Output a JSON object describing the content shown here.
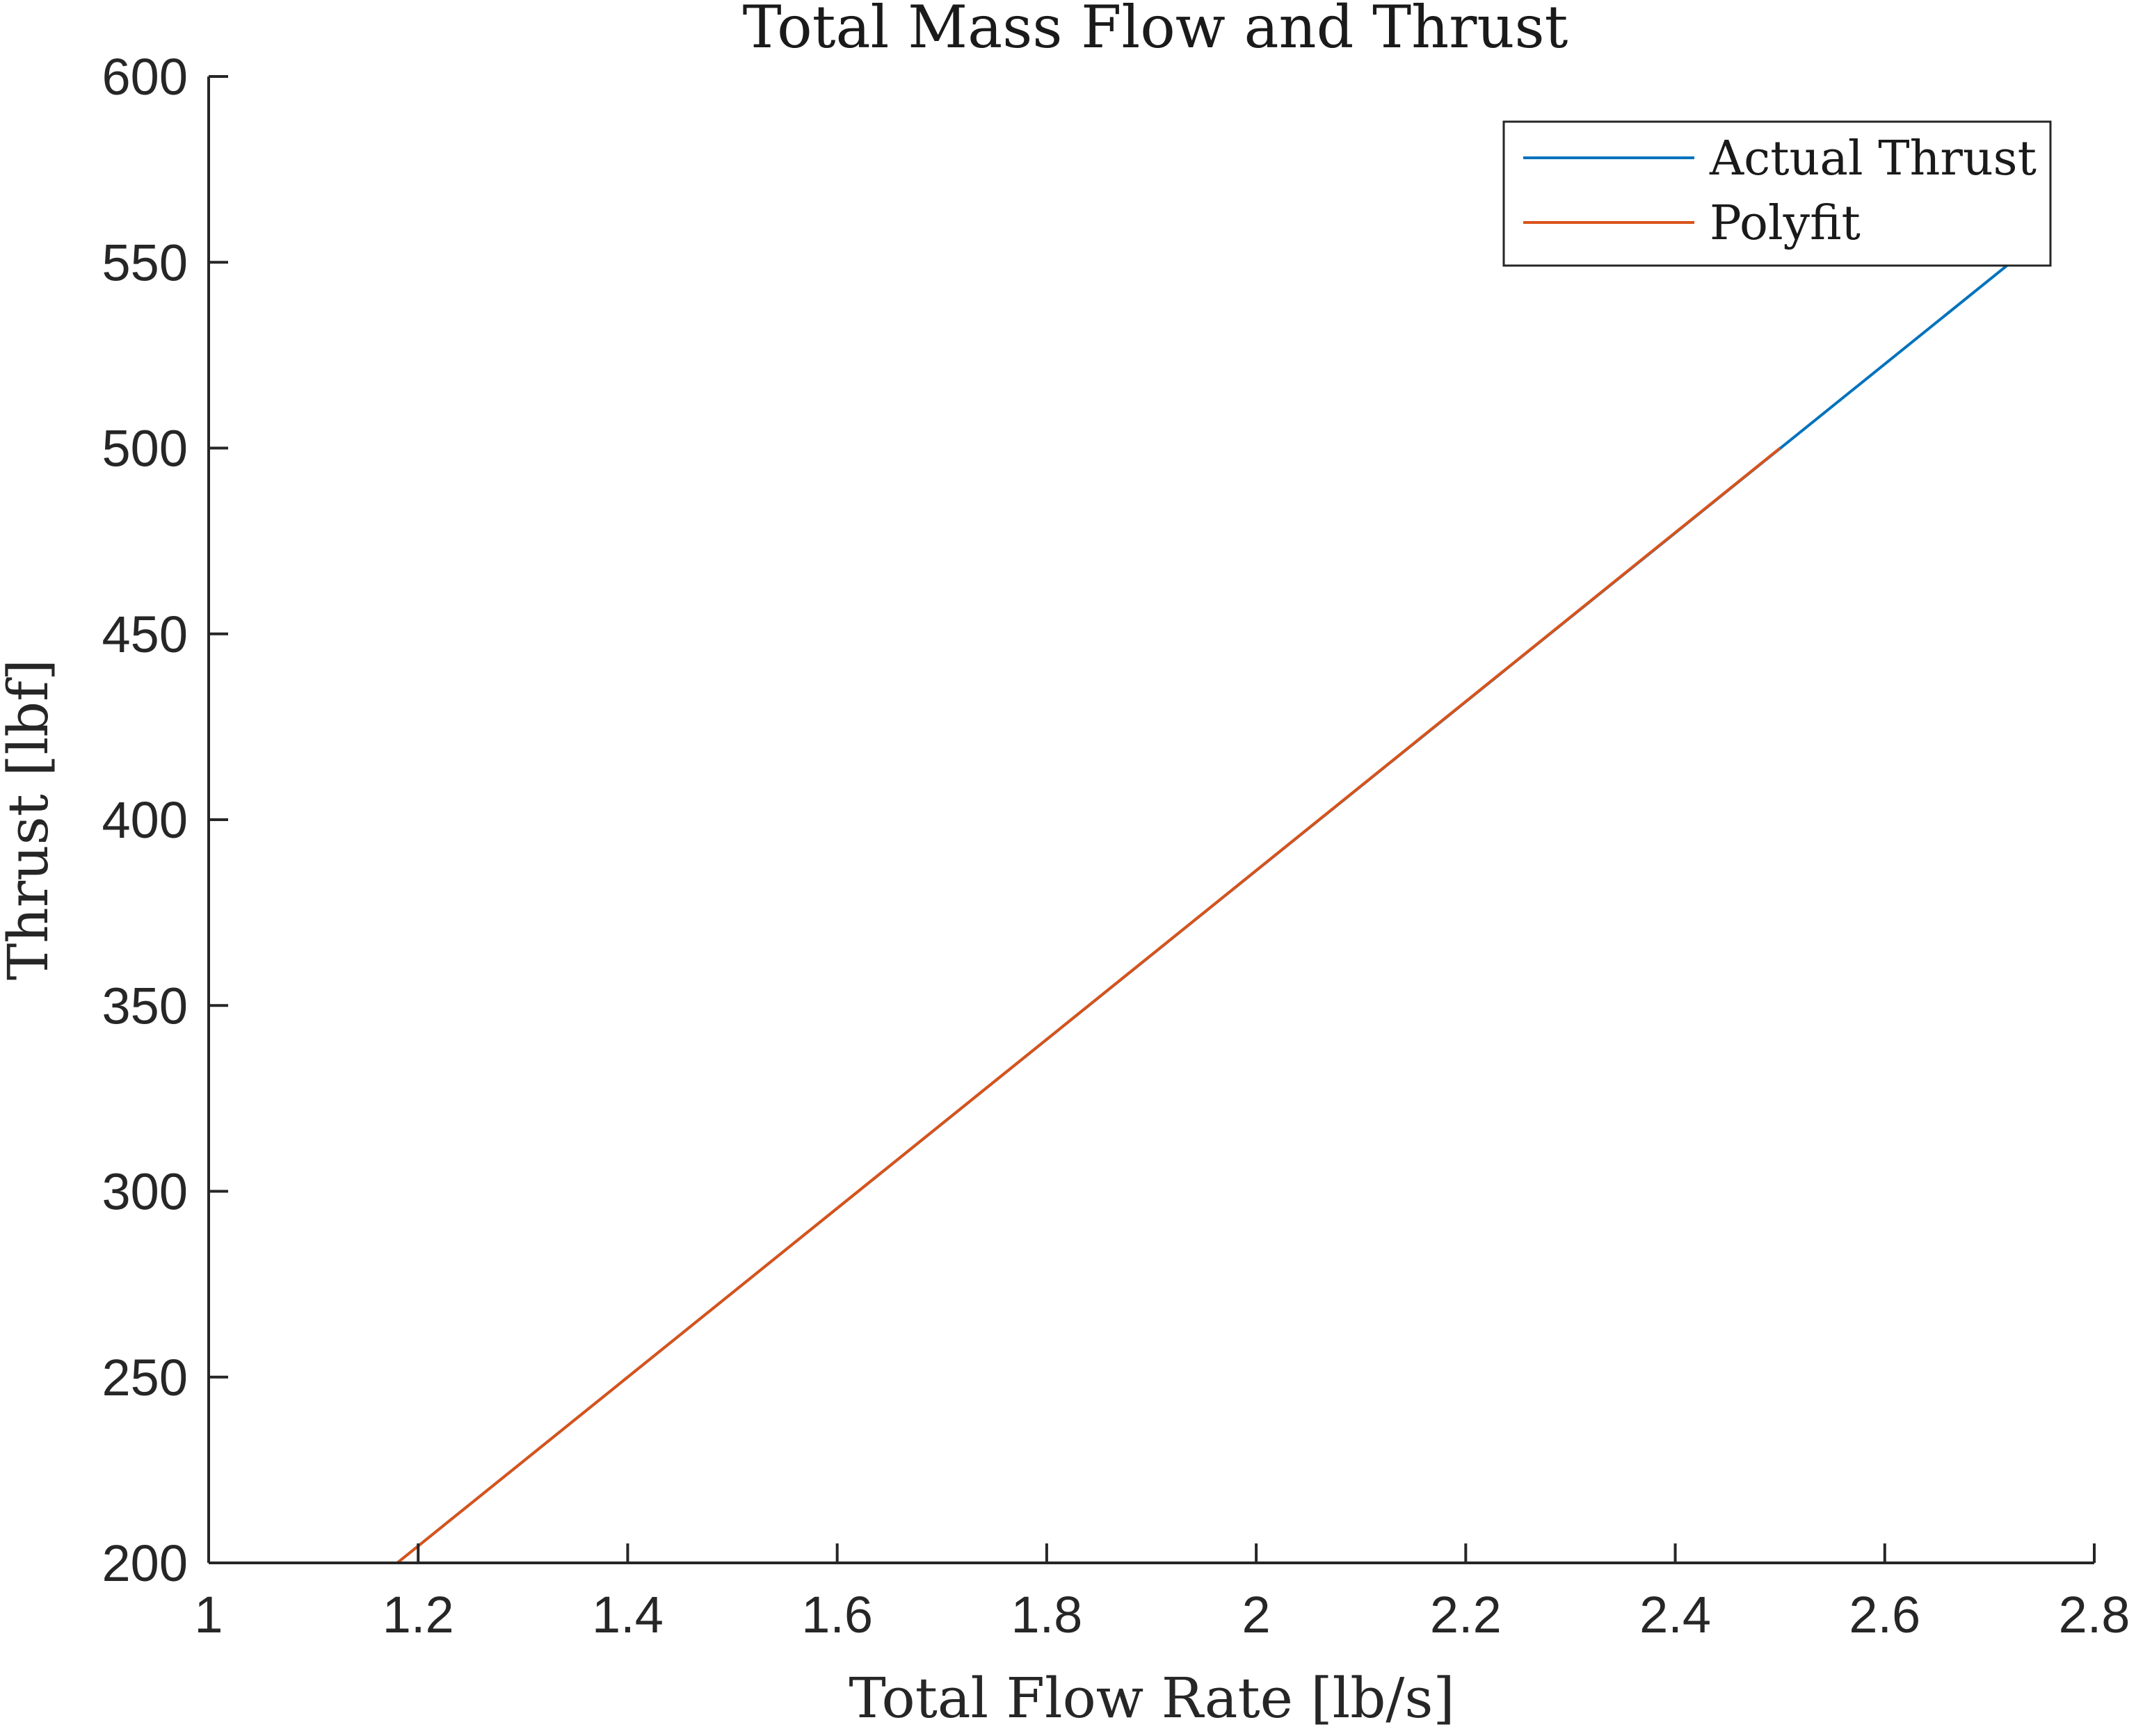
{
  "chart_data": {
    "type": "line",
    "title": "Total Mass Flow and Thrust",
    "xlabel": "Total Flow Rate [lb/s]",
    "ylabel": "Thrust [lbf]",
    "xlim": [
      1,
      2.8
    ],
    "ylim": [
      200,
      600
    ],
    "xticks": [
      "1",
      "1.2",
      "1.4",
      "1.6",
      "1.8",
      "2",
      "2.2",
      "2.4",
      "2.6",
      "2.8"
    ],
    "yticks": [
      "200",
      "250",
      "300",
      "350",
      "400",
      "450",
      "500",
      "550",
      "600"
    ],
    "grid": false,
    "legend_position": "top-right",
    "series": [
      {
        "name": "Actual Thrust",
        "color": "#0072BD",
        "x": [
          1.18,
          2.725
        ],
        "y": [
          200,
          551
        ]
      },
      {
        "name": "Polyfit",
        "color": "#D95319",
        "x": [
          1.18,
          2.5
        ],
        "y": [
          200,
          500
        ]
      }
    ]
  }
}
